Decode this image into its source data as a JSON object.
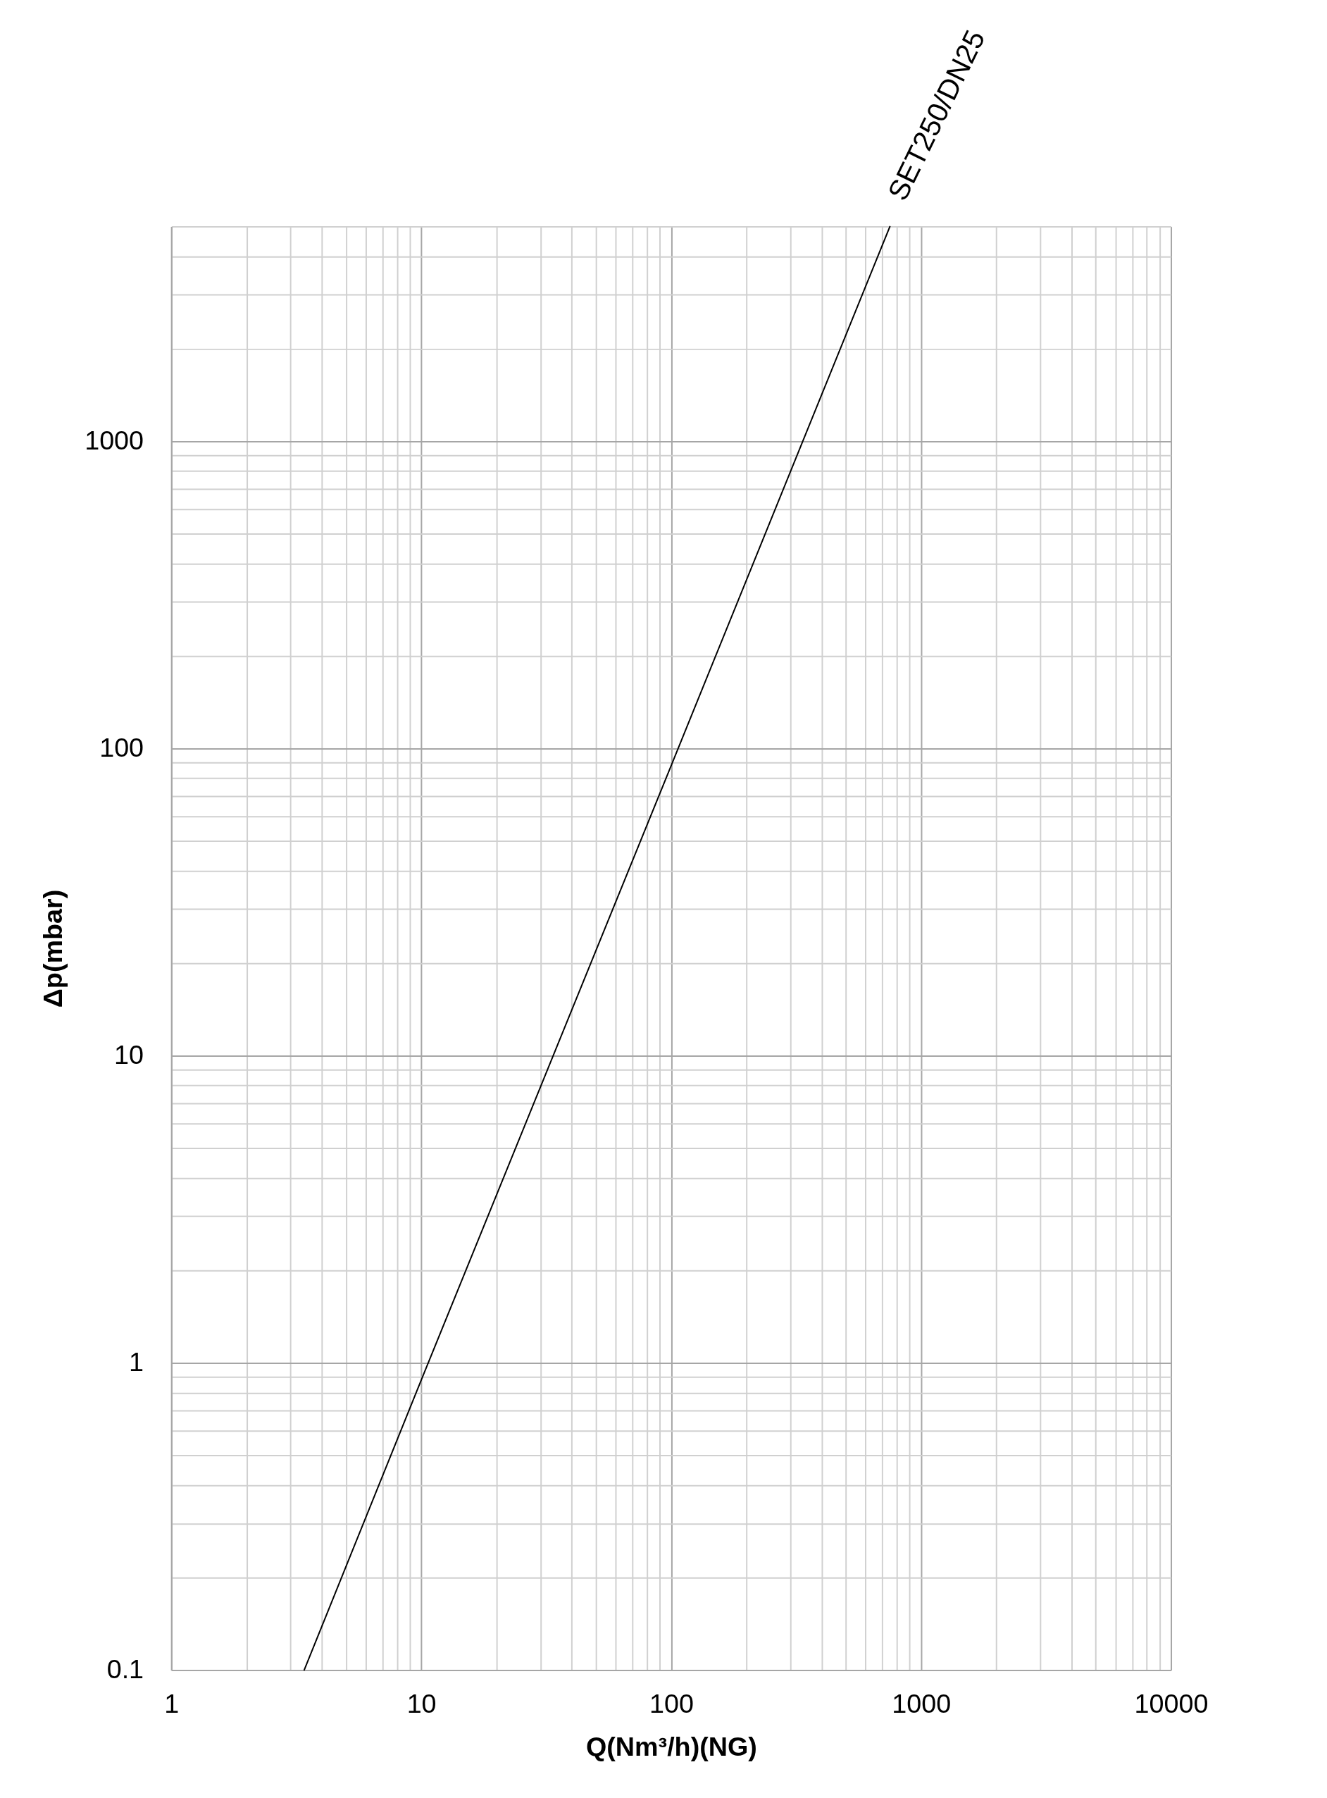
{
  "chart_data": {
    "type": "line",
    "xlabel": "Q(Nm³/h)(NG)",
    "ylabel": "Δp(mbar)",
    "log": "xy",
    "grid": true,
    "line_style": "solid",
    "x": [
      3.4,
      10,
      100,
      750
    ],
    "series": [
      {
        "name": "SET250/DN25",
        "color": "#000000",
        "values": [
          0.1,
          0.88,
          88,
          5000
        ]
      }
    ],
    "xlim": [
      1,
      10000
    ],
    "ylim": [
      0.1,
      5000
    ],
    "xticks": [
      1,
      {
        "value": 2,
        "label": null
      },
      {
        "value": 3,
        "label": null
      },
      {
        "value": 4,
        "label": null
      },
      {
        "value": 5,
        "label": null
      },
      {
        "value": 6,
        "label": null
      },
      {
        "value": 7,
        "label": null
      },
      {
        "value": 8,
        "label": null
      },
      {
        "value": 9,
        "label": null
      },
      10,
      {
        "value": 20,
        "label": null
      },
      {
        "value": 30,
        "label": null
      },
      {
        "value": 40,
        "label": null
      },
      {
        "value": 50,
        "label": null
      },
      {
        "value": 60,
        "label": null
      },
      {
        "value": 70,
        "label": null
      },
      {
        "value": 80,
        "label": null
      },
      {
        "value": 90,
        "label": null
      },
      100,
      {
        "value": 200,
        "label": null
      },
      {
        "value": 300,
        "label": null
      },
      {
        "value": 400,
        "label": null
      },
      {
        "value": 500,
        "label": null
      },
      {
        "value": 600,
        "label": null
      },
      {
        "value": 700,
        "label": null
      },
      {
        "value": 800,
        "label": null
      },
      {
        "value": 900,
        "label": null
      },
      1000,
      {
        "value": 2000,
        "label": null
      },
      {
        "value": 3000,
        "label": null
      },
      {
        "value": 4000,
        "label": null
      },
      {
        "value": 5000,
        "label": null
      },
      {
        "value": 6000,
        "label": null
      },
      {
        "value": 7000,
        "label": null
      },
      {
        "value": 8000,
        "label": null
      },
      {
        "value": 9000,
        "label": null
      },
      10000
    ],
    "yticks": [
      0.1,
      {
        "value": 0.2,
        "label": null
      },
      {
        "value": 0.3,
        "label": null
      },
      {
        "value": 0.4,
        "label": null
      },
      {
        "value": 0.5,
        "label": null
      },
      {
        "value": 0.6,
        "label": null
      },
      {
        "value": 0.7,
        "label": null
      },
      {
        "value": 0.8,
        "label": null
      },
      {
        "value": 0.9,
        "label": null
      },
      1,
      {
        "value": 2,
        "label": null
      },
      {
        "value": 3,
        "label": null
      },
      {
        "value": 4,
        "label": null
      },
      {
        "value": 5,
        "label": null
      },
      {
        "value": 6,
        "label": null
      },
      {
        "value": 7,
        "label": null
      },
      {
        "value": 8,
        "label": null
      },
      {
        "value": 9,
        "label": null
      },
      10,
      {
        "value": 20,
        "label": null
      },
      {
        "value": 30,
        "label": null
      },
      {
        "value": 40,
        "label": null
      },
      {
        "value": 50,
        "label": null
      },
      {
        "value": 60,
        "label": null
      },
      {
        "value": 70,
        "label": null
      },
      {
        "value": 80,
        "label": null
      },
      {
        "value": 90,
        "label": null
      },
      100,
      {
        "value": 200,
        "label": null
      },
      {
        "value": 300,
        "label": null
      },
      {
        "value": 400,
        "label": null
      },
      {
        "value": 500,
        "label": null
      },
      {
        "value": 600,
        "label": null
      },
      {
        "value": 700,
        "label": null
      },
      {
        "value": 800,
        "label": null
      },
      {
        "value": 900,
        "label": null
      },
      1000,
      {
        "value": 2000,
        "label": null
      },
      {
        "value": 3000,
        "label": null
      },
      {
        "value": 4000,
        "label": null
      },
      {
        "value": 5000,
        "label": null
      }
    ]
  }
}
